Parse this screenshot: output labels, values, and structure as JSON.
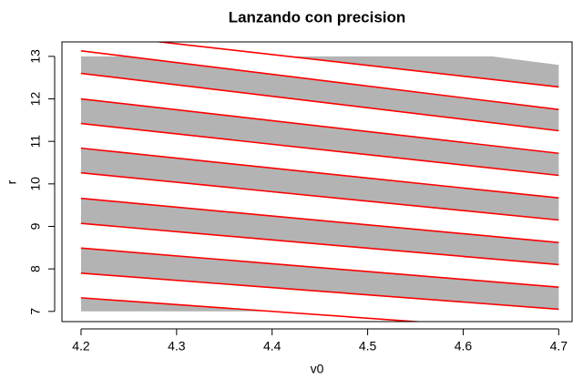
{
  "chart_data": {
    "type": "line",
    "title": "Lanzando con precision",
    "x_label": "v0",
    "y_label": "r",
    "xlim": [
      4.18,
      4.714
    ],
    "ylim": [
      6.76,
      13.34
    ],
    "xticks": [
      4.2,
      4.3,
      4.4,
      4.5,
      4.6,
      4.7
    ],
    "yticks": [
      7,
      8,
      9,
      10,
      11,
      12,
      13
    ],
    "polygon_color": "#b3b3b3",
    "line_color": "#ff0000",
    "polygons": [
      {
        "x": [
          4.417,
          4.63,
          4.7,
          4.7
        ],
        "y": [
          13,
          13,
          12.8,
          12.28
        ]
      },
      {
        "x": [
          4.2,
          4.247,
          4.7,
          4.7,
          4.2
        ],
        "y": [
          13,
          13,
          11.75,
          11.25,
          12.6
        ]
      },
      {
        "x": [
          4.2,
          4.7,
          4.7,
          4.2
        ],
        "y": [
          12.0,
          10.72,
          10.2,
          11.42
        ]
      },
      {
        "x": [
          4.2,
          4.7,
          4.7,
          4.2
        ],
        "y": [
          10.84,
          9.67,
          9.15,
          10.26
        ]
      },
      {
        "x": [
          4.2,
          4.7,
          4.7,
          4.2
        ],
        "y": [
          9.66,
          8.62,
          8.1,
          9.07
        ]
      },
      {
        "x": [
          4.2,
          4.7,
          4.7,
          4.2
        ],
        "y": [
          8.49,
          7.57,
          7.05,
          7.9
        ]
      },
      {
        "x": [
          4.2,
          4.4,
          4.2
        ],
        "y": [
          7.32,
          7.0,
          7.0
        ]
      }
    ],
    "lines": [
      {
        "x": [
          4.2,
          4.7
        ],
        "y": [
          13.55,
          12.28
        ]
      },
      {
        "x": [
          4.2,
          4.7
        ],
        "y": [
          13.13,
          11.75
        ]
      },
      {
        "x": [
          4.2,
          4.7
        ],
        "y": [
          12.6,
          11.25
        ]
      },
      {
        "x": [
          4.2,
          4.7
        ],
        "y": [
          12.0,
          10.72
        ]
      },
      {
        "x": [
          4.2,
          4.7
        ],
        "y": [
          11.42,
          10.2
        ]
      },
      {
        "x": [
          4.2,
          4.7
        ],
        "y": [
          10.84,
          9.67
        ]
      },
      {
        "x": [
          4.2,
          4.7
        ],
        "y": [
          10.26,
          9.15
        ]
      },
      {
        "x": [
          4.2,
          4.7
        ],
        "y": [
          9.66,
          8.62
        ]
      },
      {
        "x": [
          4.2,
          4.7
        ],
        "y": [
          9.07,
          8.1
        ]
      },
      {
        "x": [
          4.2,
          4.7
        ],
        "y": [
          8.49,
          7.57
        ]
      },
      {
        "x": [
          4.2,
          4.7
        ],
        "y": [
          7.9,
          7.05
        ]
      },
      {
        "x": [
          4.2,
          4.7
        ],
        "y": [
          7.32,
          6.52
        ]
      }
    ]
  }
}
